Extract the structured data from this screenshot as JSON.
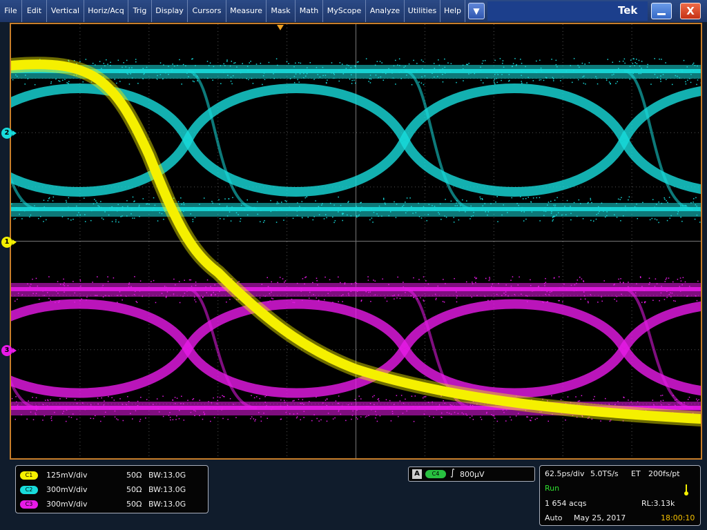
{
  "menu": [
    {
      "label": "File"
    },
    {
      "label": "Edit"
    },
    {
      "label": "Vertical"
    },
    {
      "label": "Horiz/Acq"
    },
    {
      "label": "Trig"
    },
    {
      "label": "Display"
    },
    {
      "label": "Cursors"
    },
    {
      "label": "Measure"
    },
    {
      "label": "Mask"
    },
    {
      "label": "Math"
    },
    {
      "label": "MyScope"
    },
    {
      "label": "Analyze"
    },
    {
      "label": "Utilities"
    },
    {
      "label": "Help"
    }
  ],
  "menu_dropdown_glyph": "▼",
  "brand": "Tek",
  "window": {
    "close_glyph": "X"
  },
  "colors": {
    "ch1": "#f5f000",
    "ch2": "#18dcdc",
    "ch3": "#e81ae8",
    "ch4": "#28c040",
    "trigger": "#f0a020",
    "frame": "#c87e2a"
  },
  "markers": [
    {
      "label": "1",
      "channel": "ch1"
    },
    {
      "label": "2",
      "channel": "ch2"
    },
    {
      "label": "3",
      "channel": "ch3"
    }
  ],
  "channels": [
    {
      "badge": "C1",
      "scale": "125mV/div",
      "impedance": "50Ω",
      "bandwidth": "BW:13.0G"
    },
    {
      "badge": "C2",
      "scale": "300mV/div",
      "impedance": "50Ω",
      "bandwidth": "BW:13.0G"
    },
    {
      "badge": "C3",
      "scale": "300mV/div",
      "impedance": "50Ω",
      "bandwidth": "BW:13.0G"
    }
  ],
  "trigger": {
    "mode": "A",
    "source": "C4",
    "slope": "∫",
    "level": "800µV"
  },
  "acquisition": {
    "timebase": "62.5ps/div",
    "sample_rate": "5.0TS/s",
    "mode": "ET",
    "resolution": "200fs/pt",
    "state": "Run",
    "acqs": "1 654 acqs",
    "record_length": "RL:3.13k",
    "trigger_mode": "Auto",
    "date": "May 25, 2017",
    "time": "18:00:10"
  }
}
